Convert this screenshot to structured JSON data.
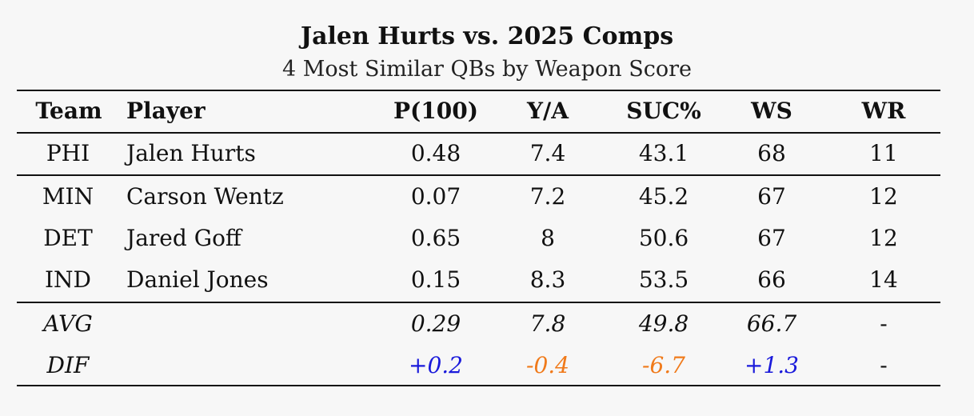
{
  "title": "Jalen Hurts vs. 2025 Comps",
  "subtitle": "4 Most Similar QBs by Weapon Score",
  "columns": [
    "Team",
    "Player",
    "P(100)",
    "Y/A",
    "SUC%",
    "WS",
    "WR"
  ],
  "rows": [
    {
      "team": "PHI",
      "player": "Jalen Hurts",
      "p100": "0.48",
      "ya": "7.4",
      "suc": "43.1",
      "ws": "68",
      "wr": "11"
    },
    {
      "team": "MIN",
      "player": "Carson Wentz",
      "p100": "0.07",
      "ya": "7.2",
      "suc": "45.2",
      "ws": "67",
      "wr": "12"
    },
    {
      "team": "DET",
      "player": "Jared Goff",
      "p100": "0.65",
      "ya": "8",
      "suc": "50.6",
      "ws": "67",
      "wr": "12"
    },
    {
      "team": "IND",
      "player": "Daniel Jones",
      "p100": "0.15",
      "ya": "8.3",
      "suc": "53.5",
      "ws": "66",
      "wr": "14"
    }
  ],
  "summary": [
    {
      "label": "AVG",
      "p100": "0.29",
      "ya": "7.8",
      "suc": "49.8",
      "ws": "66.7",
      "wr": "-"
    },
    {
      "label": "DIF",
      "p100": "+0.2",
      "ya": "-0.4",
      "suc": "-6.7",
      "ws": "+1.3",
      "wr": "-"
    }
  ],
  "colors": {
    "positive": "#1a1adb",
    "negative": "#f07a1a",
    "background": "#f7f7f7"
  }
}
